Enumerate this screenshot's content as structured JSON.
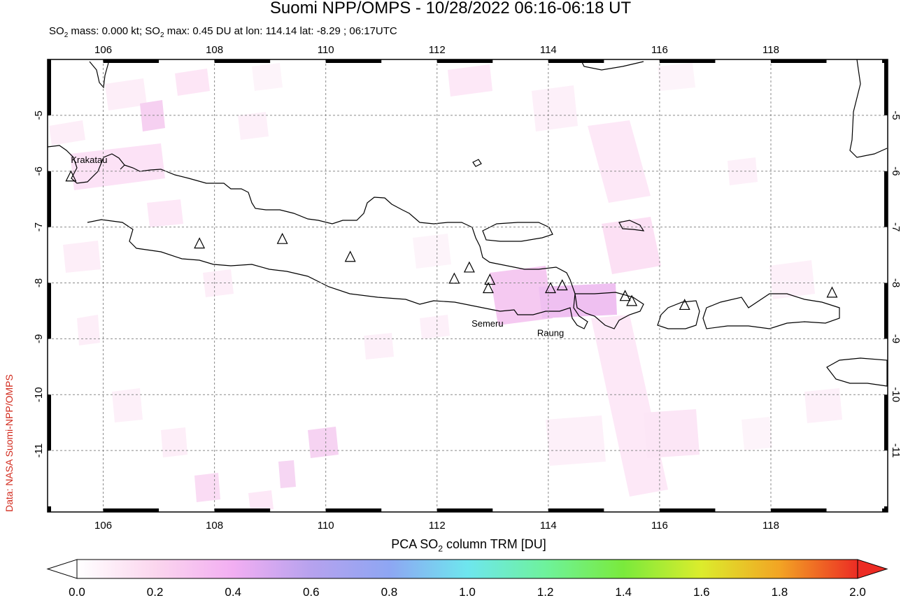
{
  "title": "Suomi NPP/OMPS - 10/28/2022 06:16-06:18 UT",
  "subtitle": {
    "mass_prefix": "SO",
    "mass_sub": "2",
    "mass_text": " mass: 0.000 kt; SO",
    "max_sub": "2",
    "max_text": " max: 0.45 DU at lon: 114.14 lat: -8.29 ; 06:17UTC"
  },
  "credit": "Data: NASA Suomi-NPP/OMPS",
  "map": {
    "lon_ticks": [
      "106",
      "108",
      "110",
      "112",
      "114",
      "116",
      "118"
    ],
    "lat_ticks": [
      "-5",
      "-6",
      "-7",
      "-8",
      "-9",
      "-10",
      "-11"
    ],
    "lon_range": [
      105.0,
      120.1
    ],
    "lat_range": [
      -12.1,
      -4.0
    ],
    "volcano_labels": [
      {
        "name": "Krakatau",
        "lon": 105.42,
        "lat": -5.85
      },
      {
        "name": "Semeru",
        "lon": 112.62,
        "lat": -8.78
      },
      {
        "name": "Raung",
        "lon": 113.8,
        "lat": -8.95
      }
    ],
    "volcanoes": [
      {
        "lon": 105.42,
        "lat": -6.1
      },
      {
        "lon": 107.73,
        "lat": -7.3
      },
      {
        "lon": 109.22,
        "lat": -7.22
      },
      {
        "lon": 110.44,
        "lat": -7.54
      },
      {
        "lon": 112.31,
        "lat": -7.93
      },
      {
        "lon": 112.58,
        "lat": -7.73
      },
      {
        "lon": 112.95,
        "lat": -7.95
      },
      {
        "lon": 112.92,
        "lat": -8.1
      },
      {
        "lon": 114.04,
        "lat": -8.1
      },
      {
        "lon": 114.25,
        "lat": -8.05
      },
      {
        "lon": 115.38,
        "lat": -8.24
      },
      {
        "lon": 115.5,
        "lat": -8.33
      },
      {
        "lon": 116.45,
        "lat": -8.4
      },
      {
        "lon": 119.1,
        "lat": -8.18
      }
    ]
  },
  "colorbar": {
    "title_prefix": "PCA SO",
    "title_sub": "2",
    "title_suffix": " column TRM [DU]",
    "ticks": [
      "0.0",
      "0.2",
      "0.4",
      "0.6",
      "0.8",
      "1.0",
      "1.2",
      "1.4",
      "1.6",
      "1.8",
      "2.0"
    ],
    "colors": [
      "#ffffff",
      "#fbd6ee",
      "#f2aef2",
      "#b6a2ee",
      "#8ea6f3",
      "#6ee6ee",
      "#6ef29c",
      "#7aea3c",
      "#dcec2c",
      "#f2a424",
      "#ec2c24"
    ]
  }
}
